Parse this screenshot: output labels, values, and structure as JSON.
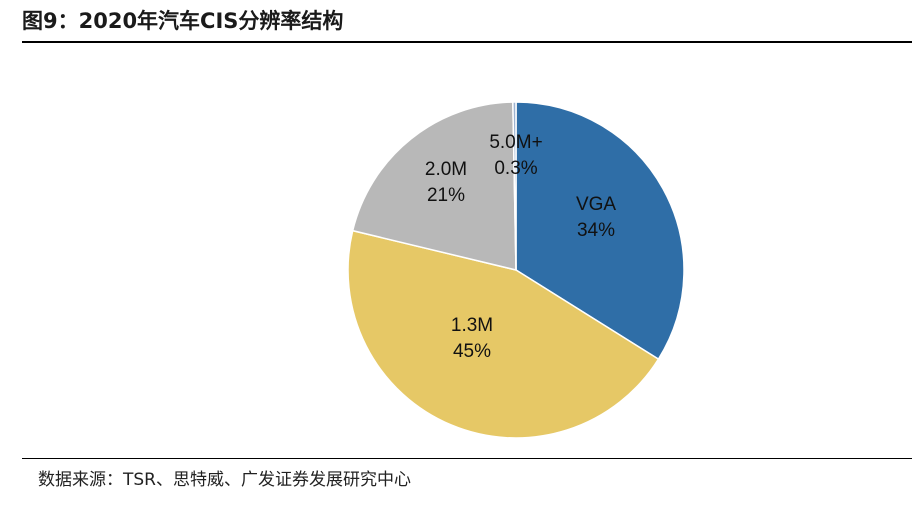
{
  "header": {
    "title": "图9：2020年汽车CIS分辨率结构"
  },
  "footer": {
    "source": "数据来源：TSR、思特威、广发证券发展研究中心"
  },
  "chart_data": {
    "type": "pie",
    "title": "图9：2020年汽车CIS分辨率结构",
    "slices": [
      {
        "name": "VGA",
        "value": 34,
        "label": "34%",
        "color": "#2f6ea7"
      },
      {
        "name": "1.3M",
        "value": 45,
        "label": "45%",
        "color": "#e6c866"
      },
      {
        "name": "2.0M",
        "value": 21,
        "label": "21%",
        "color": "#b8b8b8"
      },
      {
        "name": "5.0M+",
        "value": 0.3,
        "label": "0.3%",
        "color": "#9db3d1"
      }
    ]
  }
}
